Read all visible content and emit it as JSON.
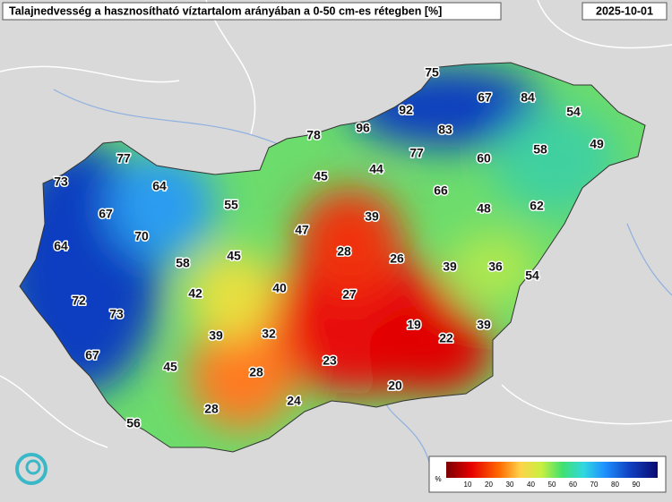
{
  "header": {
    "title": "Talajnedvesség a hasznosítható víztartalom arányában a 0-50 cm-es rétegben [%]",
    "date": "2025-10-01"
  },
  "stations": [
    75,
    67,
    84,
    92,
    54,
    78,
    96,
    83,
    77,
    60,
    58,
    49,
    77,
    45,
    44,
    73,
    64,
    66,
    55,
    47,
    39,
    48,
    62,
    67,
    70,
    64,
    28,
    26,
    39,
    36,
    54,
    45,
    58,
    40,
    27,
    42,
    72,
    73,
    19,
    22,
    39,
    39,
    32,
    23,
    45,
    67,
    28,
    20,
    24,
    28,
    56
  ],
  "legend": {
    "unit": "%",
    "ticks": [
      10,
      20,
      30,
      40,
      50,
      60,
      70,
      80,
      90
    ]
  }
}
